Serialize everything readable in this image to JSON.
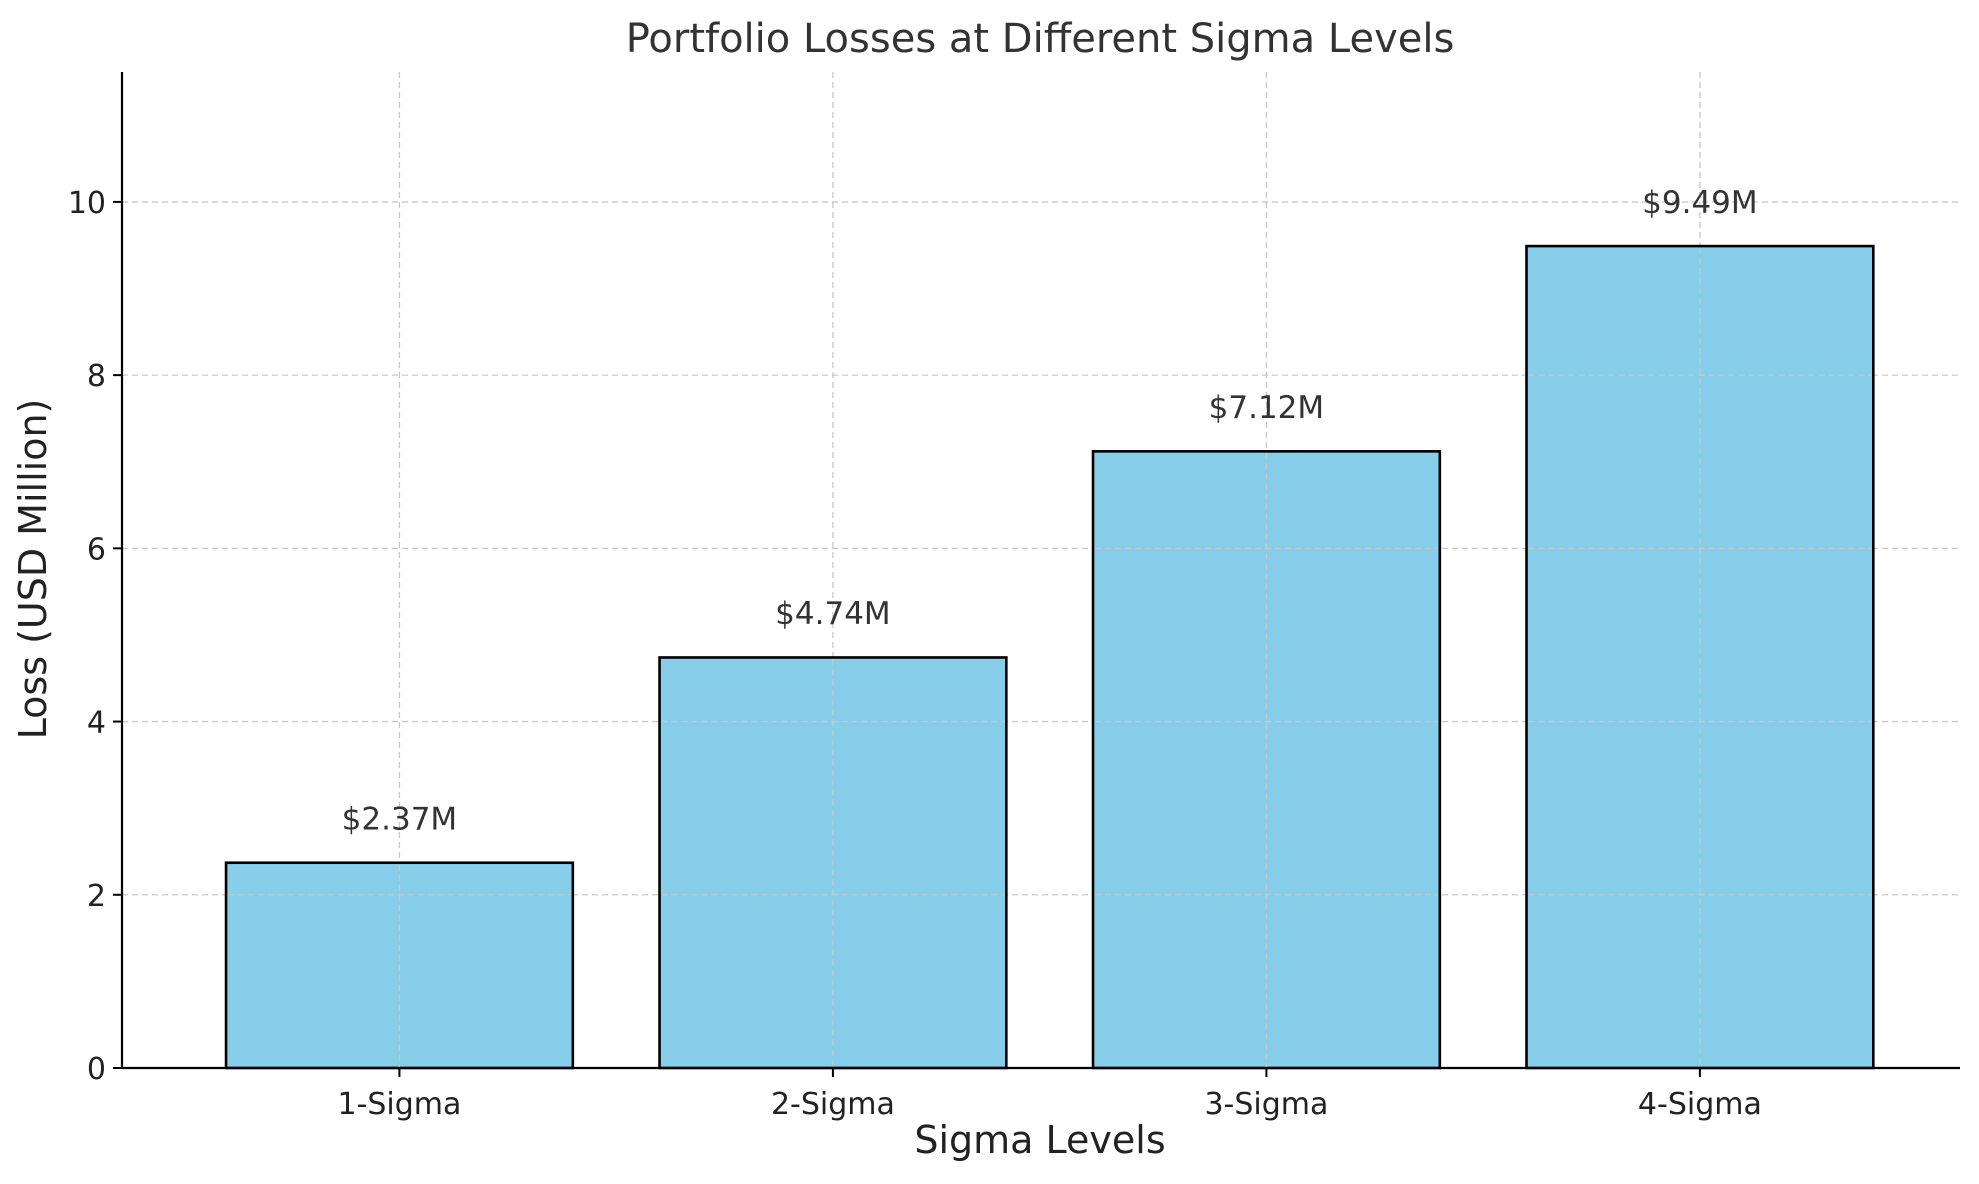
{
  "chart_data": {
    "type": "bar",
    "title": "Portfolio Losses at Different Sigma Levels",
    "xlabel": "Sigma Levels",
    "ylabel": "Loss (USD Million)",
    "categories": [
      "1-Sigma",
      "2-Sigma",
      "3-Sigma",
      "4-Sigma"
    ],
    "values": [
      2.37,
      4.74,
      7.12,
      9.49
    ],
    "data_labels": [
      "$2.37M",
      "$4.74M",
      "$7.12M",
      "$9.49M"
    ],
    "ylim": [
      0,
      11.5
    ],
    "yticks": [
      0,
      2,
      4,
      6,
      8,
      10
    ],
    "grid": true,
    "colors": {
      "bar_fill": "#87ceeb",
      "bar_edge": "#000000"
    }
  }
}
